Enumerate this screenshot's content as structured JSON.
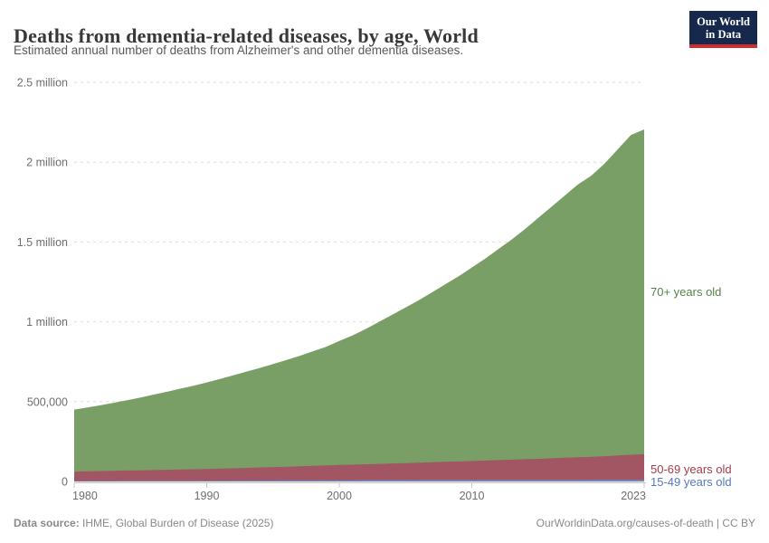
{
  "header": {
    "title": "Deaths from dementia-related diseases, by age, World",
    "subtitle": "Estimated annual number of deaths from Alzheimer's and other dementia diseases."
  },
  "logo": {
    "line1": "Our World",
    "line2": "in Data",
    "bg_color": "#16294d",
    "accent_color": "#cf2d2d"
  },
  "chart_data": {
    "type": "area",
    "stacked": true,
    "title": "Deaths from dementia-related diseases, by age, World",
    "xlabel": "",
    "ylabel": "",
    "ylim": [
      0,
      2500000
    ],
    "grid": "horizontal-dashed",
    "legend_position": "right-edge-labels",
    "xticks": [
      1980,
      1990,
      2000,
      2010,
      2023
    ],
    "yticks": [
      {
        "value": 0,
        "label": "0"
      },
      {
        "value": 500000,
        "label": "500,000"
      },
      {
        "value": 1000000,
        "label": "1 million"
      },
      {
        "value": 1500000,
        "label": "1.5 million"
      },
      {
        "value": 2000000,
        "label": "2 million"
      },
      {
        "value": 2500000,
        "label": "2.5 million"
      }
    ],
    "x": [
      1980,
      1981,
      1982,
      1983,
      1984,
      1985,
      1986,
      1987,
      1988,
      1989,
      1990,
      1991,
      1992,
      1993,
      1994,
      1995,
      1996,
      1997,
      1998,
      1999,
      2000,
      2001,
      2002,
      2003,
      2004,
      2005,
      2006,
      2007,
      2008,
      2009,
      2010,
      2011,
      2012,
      2013,
      2014,
      2015,
      2016,
      2017,
      2018,
      2019,
      2020,
      2021,
      2022,
      2023
    ],
    "series": [
      {
        "name": "15-49 years old",
        "color": "#7388bb",
        "label_color": "#5578bd",
        "values": [
          3000,
          3200,
          3400,
          3600,
          3800,
          4000,
          4200,
          4400,
          4600,
          4800,
          5000,
          5300,
          5600,
          5900,
          6200,
          6500,
          6800,
          7100,
          7400,
          7700,
          8000,
          8150,
          8300,
          8450,
          8600,
          8750,
          8900,
          9050,
          9200,
          9350,
          9500,
          9600,
          9700,
          9800,
          9900,
          10000,
          10150,
          10300,
          10450,
          10600,
          10750,
          10850,
          10950,
          11000
        ]
      },
      {
        "name": "50-69 years old",
        "color": "#a25664",
        "label_color": "#a63c4a",
        "values": [
          59000,
          60400,
          61800,
          63200,
          64600,
          66000,
          67400,
          68800,
          70200,
          71600,
          73000,
          75100,
          77200,
          79300,
          81400,
          83500,
          85800,
          88100,
          90400,
          92700,
          95000,
          97250,
          99500,
          101750,
          104000,
          106250,
          108700,
          111150,
          113600,
          116050,
          118500,
          121200,
          123900,
          126600,
          129300,
          132000,
          135050,
          138100,
          141150,
          144200,
          147250,
          151750,
          156350,
          161000
        ]
      },
      {
        "name": "70+ years old",
        "color": "#7a9f66",
        "label_color": "#578249",
        "values": [
          388000,
          400400,
          412800,
          426200,
          440600,
          456000,
          472400,
          488800,
          506200,
          523600,
          542000,
          561600,
          582200,
          602800,
          623400,
          645000,
          667400,
          691800,
          717200,
          742600,
          777000,
          809600,
          847200,
          889800,
          932400,
          975000,
          1017400,
          1064800,
          1112200,
          1159600,
          1212000,
          1264200,
          1321400,
          1378600,
          1440800,
          1508000,
          1574800,
          1641600,
          1708400,
          1760200,
          1832000,
          1917400,
          2002700,
          2033000
        ]
      }
    ]
  },
  "footer": {
    "source_label": "Data source:",
    "source_value": " IHME, Global Burden of Disease (2025)",
    "credit": "OurWorldinData.org/causes-of-death | CC BY"
  }
}
